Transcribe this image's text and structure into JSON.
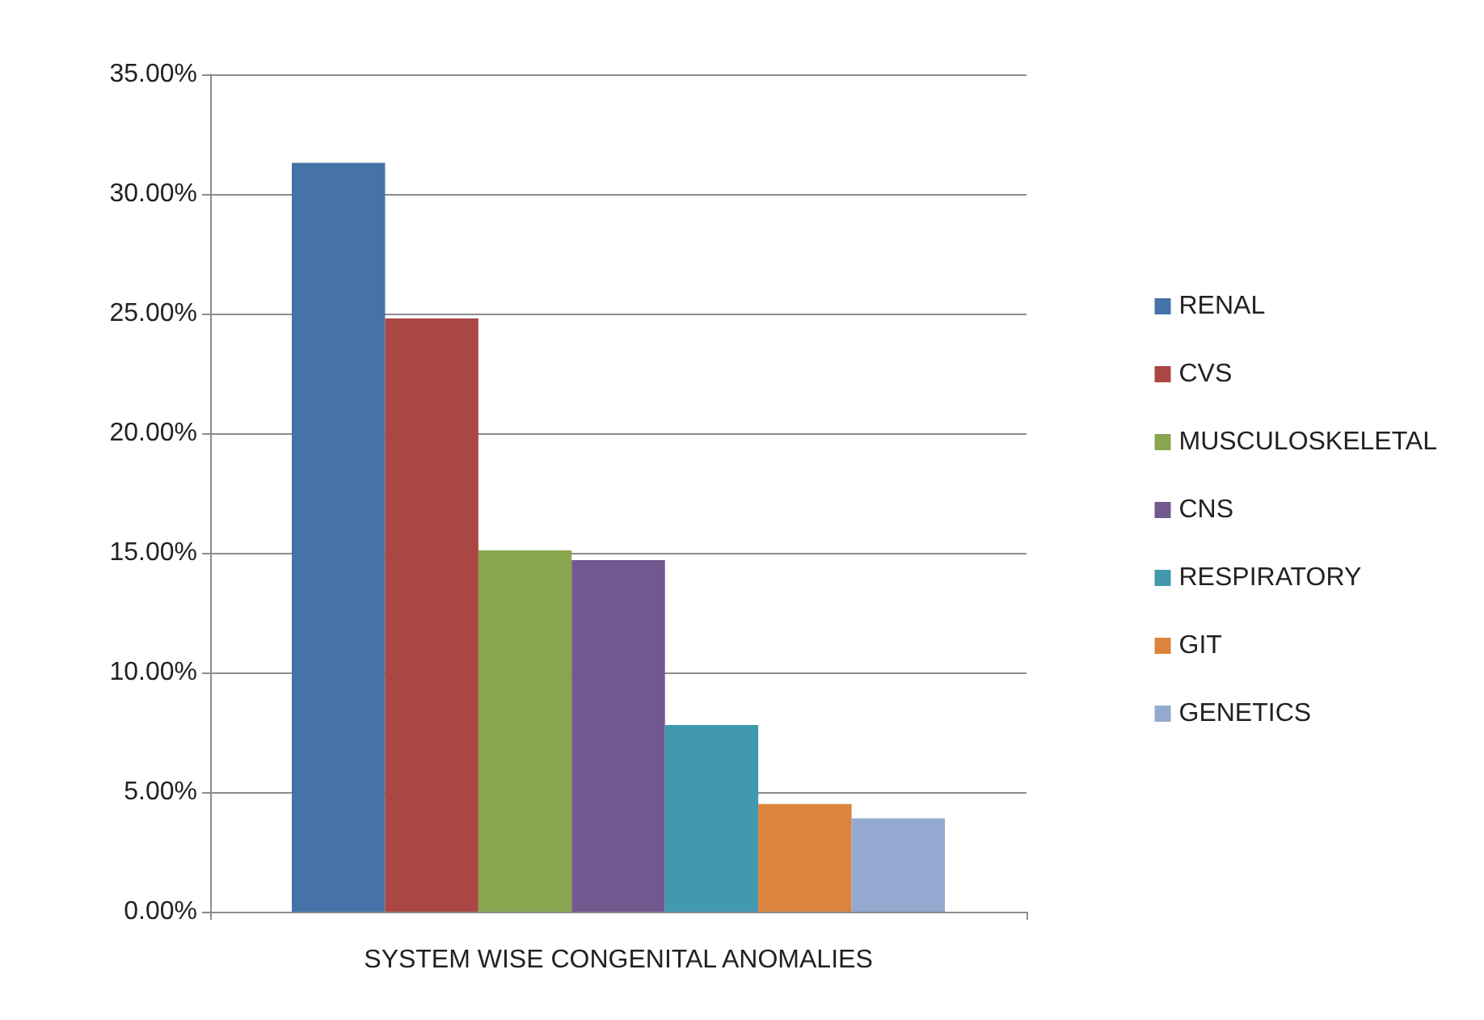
{
  "chart_data": {
    "type": "bar",
    "categories": [
      "SYSTEM WISE CONGENITAL ANOMALIES"
    ],
    "series": [
      {
        "name": "RENAL",
        "color": "#4572a7",
        "values": [
          31.3
        ]
      },
      {
        "name": "CVS",
        "color": "#aa4643",
        "values": [
          24.8
        ]
      },
      {
        "name": "MUSCULOSKELETAL",
        "color": "#89a54e",
        "values": [
          15.1
        ]
      },
      {
        "name": "CNS",
        "color": "#71588f",
        "values": [
          14.7
        ]
      },
      {
        "name": "RESPIRATORY",
        "color": "#4198af",
        "values": [
          7.8
        ]
      },
      {
        "name": "GIT",
        "color": "#db843d",
        "values": [
          4.5
        ]
      },
      {
        "name": "GENETICS",
        "color": "#93a9cf",
        "values": [
          3.9
        ]
      }
    ],
    "ylim": [
      0,
      35
    ],
    "yticks": [
      {
        "value": 0,
        "label": "0.00%"
      },
      {
        "value": 5,
        "label": "5.00%"
      },
      {
        "value": 10,
        "label": "10.00%"
      },
      {
        "value": 15,
        "label": "15.00%"
      },
      {
        "value": 20,
        "label": "20.00%"
      },
      {
        "value": 25,
        "label": "25.00%"
      },
      {
        "value": 30,
        "label": "30.00%"
      },
      {
        "value": 35,
        "label": "35.00%"
      }
    ],
    "grid": "y",
    "legend": "right"
  }
}
